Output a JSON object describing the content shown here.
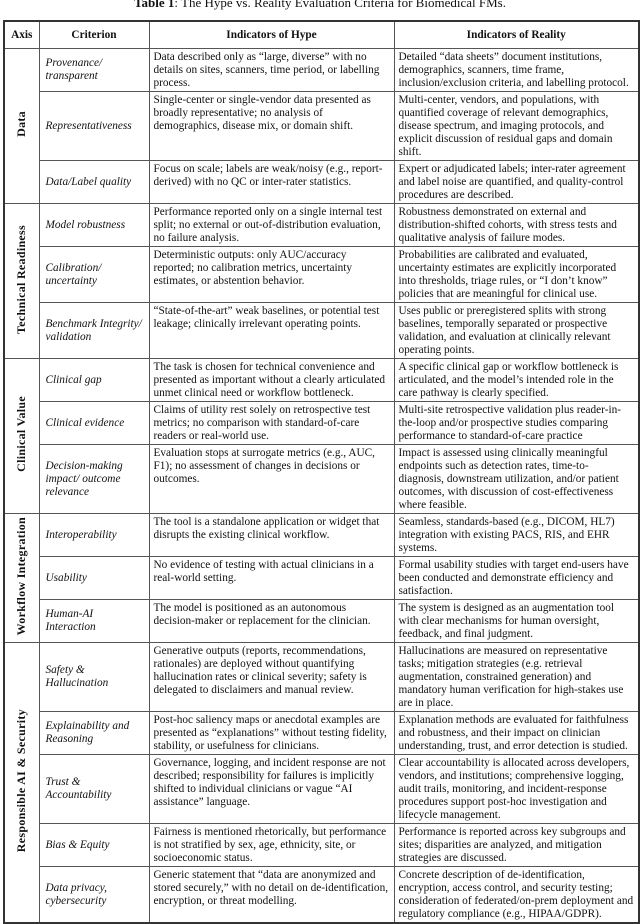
{
  "caption": {
    "label": "Table 1",
    "text": ": The Hype vs. Reality Evaluation Criteria for Biomedical FMs."
  },
  "headers": [
    "Axis",
    "Criterion",
    "Indicators of Hype",
    "Indicators of Reality"
  ],
  "groups": [
    {
      "axis": "Data",
      "rows": [
        {
          "criterion": "Provenance/ transparent",
          "hype": "Data described only as “large, diverse” with no details on sites, scanners, time period, or labelling process.",
          "reality": "Detailed “data sheets” document institutions, demographics, scanners, time frame, inclusion/exclusion criteria, and labelling protocol."
        },
        {
          "criterion": "Representativeness",
          "hype": "Single-center or single-vendor data presented as broadly representative; no analysis of demographics, disease mix, or domain shift.",
          "reality": "Multi-center, vendors, and populations, with quantified coverage of relevant demographics, disease spectrum, and imaging protocols, and explicit discussion of residual gaps and domain shift."
        },
        {
          "criterion": "Data/Label quality",
          "hype": "Focus on scale; labels are weak/noisy (e.g., report-derived) with no QC or inter-rater statistics.",
          "reality": "Expert or adjudicated labels; inter-rater agreement and label noise are quantified, and quality-control procedures are described."
        }
      ]
    },
    {
      "axis": "Technical Readiness",
      "rows": [
        {
          "criterion": "Model robustness",
          "hype": "Performance reported only on a single internal test split; no external or out-of-distribution evaluation, no failure analysis.",
          "reality": "Robustness demonstrated on external and distribution-shifted cohorts, with stress tests and qualitative analysis of failure modes."
        },
        {
          "criterion": "Calibration/ uncertainty",
          "hype": "Deterministic outputs: only AUC/accuracy reported; no calibration metrics, uncertainty estimates, or abstention behavior.",
          "reality": "Probabilities are calibrated and evaluated, uncertainty estimates are explicitly incorporated into thresholds, triage rules, or “I don’t know” policies that are meaningful for clinical use."
        },
        {
          "criterion": "Benchmark Integrity/ validation",
          "hype": "“State-of-the-art” weak baselines, or potential test leakage; clinically irrelevant operating points.",
          "reality": "Uses public or preregistered splits with strong baselines, temporally separated or prospective validation, and evaluation at clinically relevant operating points."
        }
      ]
    },
    {
      "axis": "Clinical Value",
      "rows": [
        {
          "criterion": "Clinical gap",
          "hype": "The task is chosen for technical convenience and presented as important without a clearly articulated unmet clinical need or workflow bottleneck.",
          "reality": "A specific clinical gap or workflow bottleneck is articulated, and the model’s intended role in the care pathway is clearly specified."
        },
        {
          "criterion": "Clinical evidence",
          "hype": "Claims of utility rest solely on retrospective test metrics; no comparison with standard-of-care readers or real-world use.",
          "reality": "Multi-site retrospective validation plus reader-in-the-loop and/or prospective studies comparing performance to standard-of-care practice"
        },
        {
          "criterion": "Decision-making impact/ outcome relevance",
          "hype": "Evaluation stops at surrogate metrics (e.g., AUC, F1); no assessment of changes in decisions or outcomes.",
          "reality": "Impact is assessed using clinically meaningful endpoints such as detection rates, time-to-diagnosis, downstream utilization, and/or patient outcomes, with discussion of cost-effectiveness where feasible."
        }
      ]
    },
    {
      "axis": "Workflow Integration",
      "rows": [
        {
          "criterion": "Interoperability",
          "hype": "The tool is a standalone application or widget that disrupts the existing clinical workflow.",
          "reality": "Seamless, standards-based (e.g., DICOM, HL7) integration with existing PACS, RIS, and EHR systems."
        },
        {
          "criterion": "Usability",
          "hype": "No evidence of testing with actual clinicians in a real-world setting.",
          "reality": "Formal usability studies with target end-users have been conducted and demonstrate efficiency and satisfaction."
        },
        {
          "criterion": "Human-AI Interaction",
          "hype": "The model is positioned as an autonomous decision-maker or replacement for the clinician.",
          "reality": "The system is designed as an augmentation tool with clear mechanisms for human oversight, feedback, and final judgment."
        }
      ]
    },
    {
      "axis": "Responsible AI & Security",
      "rows": [
        {
          "criterion": "Safety & Hallucination",
          "hype": "Generative outputs (reports, recommendations, rationales) are deployed without quantifying hallucination rates or clinical severity; safety is delegated to disclaimers and manual review.",
          "reality": "Hallucinations are measured on representative tasks; mitigation strategies (e.g. retrieval augmentation, constrained generation) and mandatory human verification for high-stakes use are in place."
        },
        {
          "criterion": "Explainability and Reasoning",
          "hype": "Post-hoc saliency maps or anecdotal examples are presented as “explanations” without testing fidelity, stability, or usefulness for clinicians.",
          "reality": "Explanation methods are evaluated for faithfulness and robustness, and their impact on clinician understanding, trust, and error detection is studied."
        },
        {
          "criterion": "Trust & Accountability",
          "hype": "Governance, logging, and incident response are not described; responsibility for failures is implicitly shifted to individual clinicians or vague “AI assistance” language.",
          "reality": "Clear accountability is allocated across developers, vendors, and institutions; comprehensive logging, audit trails, monitoring, and incident-response procedures support post-hoc investigation and lifecycle management."
        },
        {
          "criterion": "Bias & Equity",
          "hype": "Fairness is mentioned rhetorically, but performance is not stratified by sex, age, ethnicity, site, or socioeconomic status.",
          "reality": "Performance is reported across key subgroups and sites; disparities are analyzed, and mitigation strategies are discussed."
        },
        {
          "criterion": "Data privacy, cybersecurity",
          "hype": "Generic statement that “data are anonymized and stored securely,” with no detail on de-identification, encryption, or threat modelling.",
          "reality": "Concrete description of de-identification, encryption, access control, and security testing; consideration of federated/on-prem deployment and regulatory compliance (e.g., HIPAA/GDPR)."
        }
      ]
    }
  ]
}
